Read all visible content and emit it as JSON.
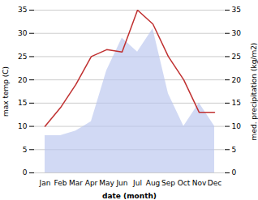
{
  "chart_data": {
    "type": "line",
    "xlabel": "date (month)",
    "ylabel": "max temp (C)",
    "y2label": "med. precipitation (kg/m2)",
    "categories": [
      "Jan",
      "Feb",
      "Mar",
      "Apr",
      "May",
      "Jun",
      "Jul",
      "Aug",
      "Sep",
      "Oct",
      "Nov",
      "Dec"
    ],
    "series": [
      {
        "type": "area",
        "axis": "y2",
        "color": "#b8c4ee",
        "values": [
          8,
          8,
          9,
          11,
          22,
          29,
          26,
          31,
          17,
          10,
          15,
          10
        ]
      },
      {
        "type": "line",
        "color": "#c03030",
        "values": [
          10,
          14,
          19,
          25,
          26.5,
          26,
          35,
          32,
          25,
          20,
          13,
          13
        ]
      }
    ],
    "ylim": [
      0,
      35
    ],
    "yticks": [
      0,
      5,
      10,
      15,
      20,
      25,
      30,
      35
    ],
    "y2lim": [
      0,
      35
    ],
    "y2ticks": [
      0,
      5,
      10,
      15,
      20,
      25,
      30,
      35
    ],
    "grid": true
  }
}
